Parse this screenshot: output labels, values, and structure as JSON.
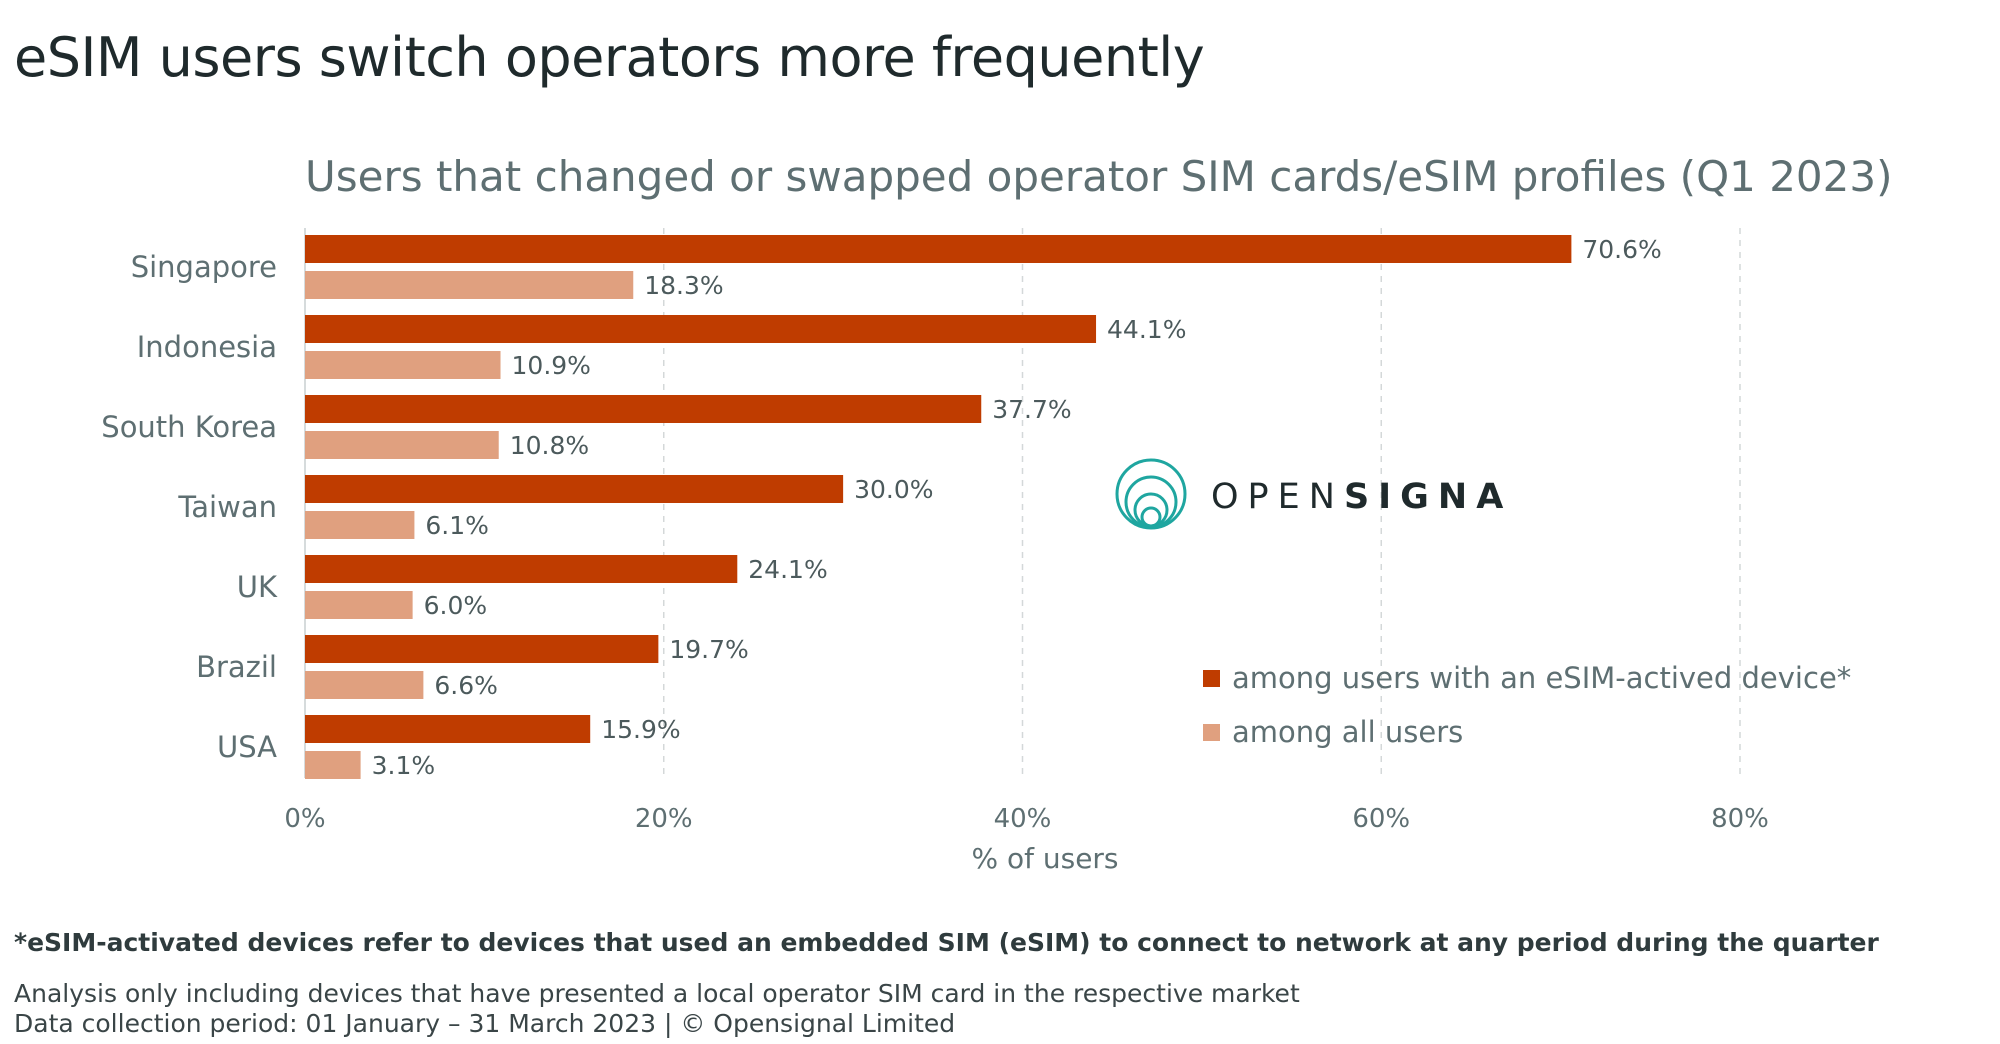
{
  "page": {
    "headline": "eSIM users switch operators more frequently",
    "footnote": "*eSIM-activated devices refer to devices that used an embedded SIM (eSIM) to connect to network at any period during the quarter",
    "note_line1": "Analysis only including devices that have presented a local operator SIM card in the respective market",
    "note_line2": "Data collection period: 01 January – 31 March 2023  | © Opensignal Limited"
  },
  "logo": {
    "text_light": "OPEN",
    "text_bold": "SIGNAL",
    "color_text": "#1f2a2c",
    "color_mark": "#1fa6a0"
  },
  "chart_data": {
    "type": "bar",
    "orientation": "horizontal",
    "title": "Users that changed or swapped operator SIM cards/eSIM profiles (Q1 2023)",
    "xlabel": "% of users",
    "ylabel": "",
    "categories": [
      "Singapore",
      "Indonesia",
      "South Korea",
      "Taiwan",
      "UK",
      "Brazil",
      "USA"
    ],
    "series": [
      {
        "name": "among users with an eSIM-actived device*",
        "color": "#bf3c00",
        "values": [
          70.6,
          44.1,
          37.7,
          30.0,
          24.1,
          19.7,
          15.9
        ],
        "labels": [
          "70.6%",
          "44.1%",
          "37.7%",
          "30.0%",
          "24.1%",
          "19.7%",
          "15.9%"
        ]
      },
      {
        "name": "among all users",
        "color": "#e0a07f",
        "values": [
          18.3,
          10.9,
          10.8,
          6.1,
          6.0,
          6.6,
          3.1
        ],
        "labels": [
          "18.3%",
          "10.9%",
          "10.8%",
          "6.1%",
          "6.0%",
          "6.6%",
          "3.1%"
        ]
      }
    ],
    "xlim": [
      0,
      80
    ],
    "xticks": [
      0,
      20,
      40,
      60,
      80
    ],
    "xtick_labels": [
      "0%",
      "20%",
      "40%",
      "60%",
      "80%"
    ],
    "grid": true,
    "legend_position": "bottom-right"
  }
}
